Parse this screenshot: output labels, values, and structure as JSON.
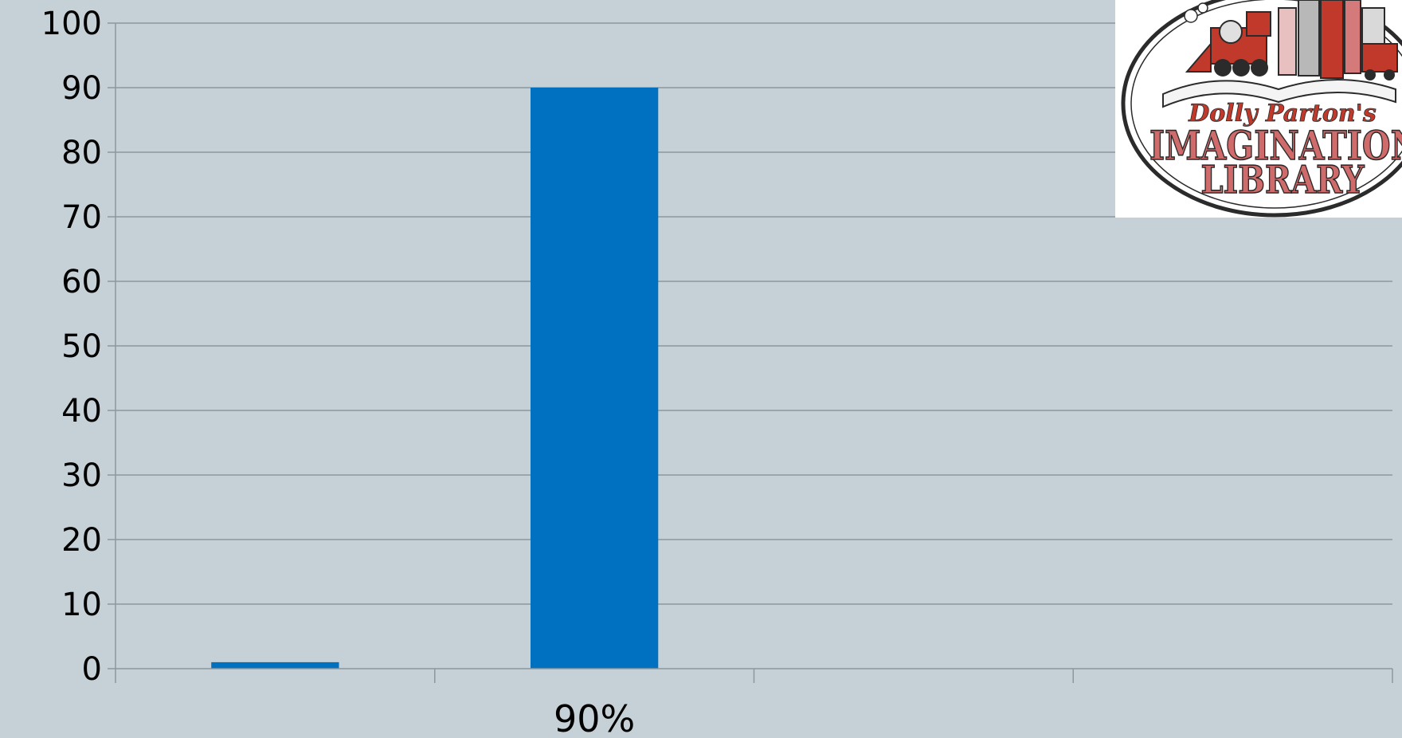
{
  "chart_data": {
    "type": "bar",
    "groups": 4,
    "bars": [
      {
        "group": 0,
        "value": 1,
        "color": "#0070c0"
      },
      {
        "group": 1,
        "value": 90,
        "color": "#0070c0"
      }
    ],
    "group_labels": [
      "",
      "90%",
      "",
      ""
    ],
    "ylim": [
      0,
      100
    ],
    "yticks": [
      "0",
      "10",
      "20",
      "30",
      "40",
      "50",
      "60",
      "70",
      "80",
      "90",
      "100"
    ],
    "grid": true,
    "background": "#c5d0d7"
  },
  "logo": {
    "subtitle": "Dolly Parton's",
    "line1": "IMAGINATION",
    "line2": "LIBRARY"
  }
}
